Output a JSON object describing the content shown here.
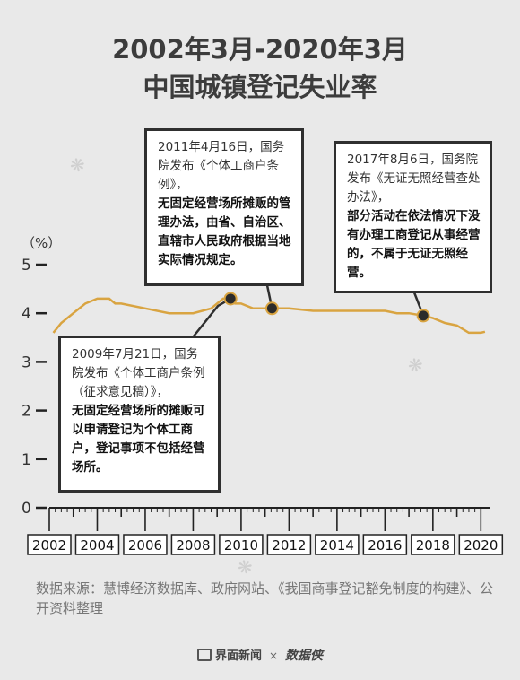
{
  "title": {
    "line1": "2002年3月-2020年3月",
    "line2": "中国城镇登记失业率"
  },
  "annotations": [
    {
      "lead": "2011年4月16日，国务院发布《个体工商户条例》，",
      "body": "无固定经营场所摊贩的管理办法，由省、自治区、直辖市人民政府根据当地实际情况规定。"
    },
    {
      "lead": "2017年8月6日，国务院发布《无证无照经营查处办法》，",
      "body": "部分活动在依法情况下没有办理工商登记从事经营的，不属于无证无照经营。"
    },
    {
      "lead": "2009年7月21日，国务院发布《个体工商户条例（征求意见稿）》，",
      "body": "无固定经营场所的摊贩可以申请登记为个体工商户，登记事项不包括经营场所。"
    }
  ],
  "source": "数据来源：慧博经济数据库、政府网站、《我国商事登记豁免制度的构建》、公开资料整理",
  "footer": {
    "brand": "界面新闻",
    "sep": "×",
    "partner": "数据侠"
  },
  "chart_data": {
    "type": "line",
    "ylabel": "（%）",
    "ylim": [
      0,
      5
    ],
    "yticks": [
      "0",
      "1",
      "2",
      "3",
      "4",
      "5"
    ],
    "xticks": [
      "2002",
      "2004",
      "2006",
      "2008",
      "2010",
      "2012",
      "2014",
      "2016",
      "2018",
      "2020"
    ],
    "xlim": [
      2002.0,
      2020.25
    ],
    "line_color": "#d9a441",
    "marker_color": "#2b2b2b",
    "series": [
      {
        "x": [
          2002.17,
          2002.5,
          2003.0,
          2003.5,
          2004.0,
          2004.5,
          2004.75,
          2005.0,
          2006.0,
          2007.0,
          2007.75,
          2008.0,
          2008.75,
          2009.0,
          2009.25,
          2009.56,
          2009.75,
          2010.0,
          2010.5,
          2011.0,
          2011.29,
          2011.75,
          2012.0,
          2013.0,
          2014.0,
          2015.0,
          2016.0,
          2016.5,
          2017.0,
          2017.6,
          2018.0,
          2018.5,
          2019.0,
          2019.5,
          2020.0,
          2020.17
        ],
        "y": [
          3.6,
          3.8,
          4.0,
          4.2,
          4.3,
          4.3,
          4.2,
          4.2,
          4.1,
          4.0,
          4.0,
          4.0,
          4.1,
          4.2,
          4.3,
          4.3,
          4.2,
          4.2,
          4.1,
          4.1,
          4.1,
          4.1,
          4.1,
          4.05,
          4.05,
          4.05,
          4.05,
          4.0,
          4.0,
          3.95,
          3.9,
          3.8,
          3.75,
          3.6,
          3.6,
          3.62
        ]
      }
    ],
    "markers": [
      {
        "x": 2009.56,
        "y": 4.3
      },
      {
        "x": 2011.29,
        "y": 4.1
      },
      {
        "x": 2017.6,
        "y": 3.95
      }
    ]
  }
}
